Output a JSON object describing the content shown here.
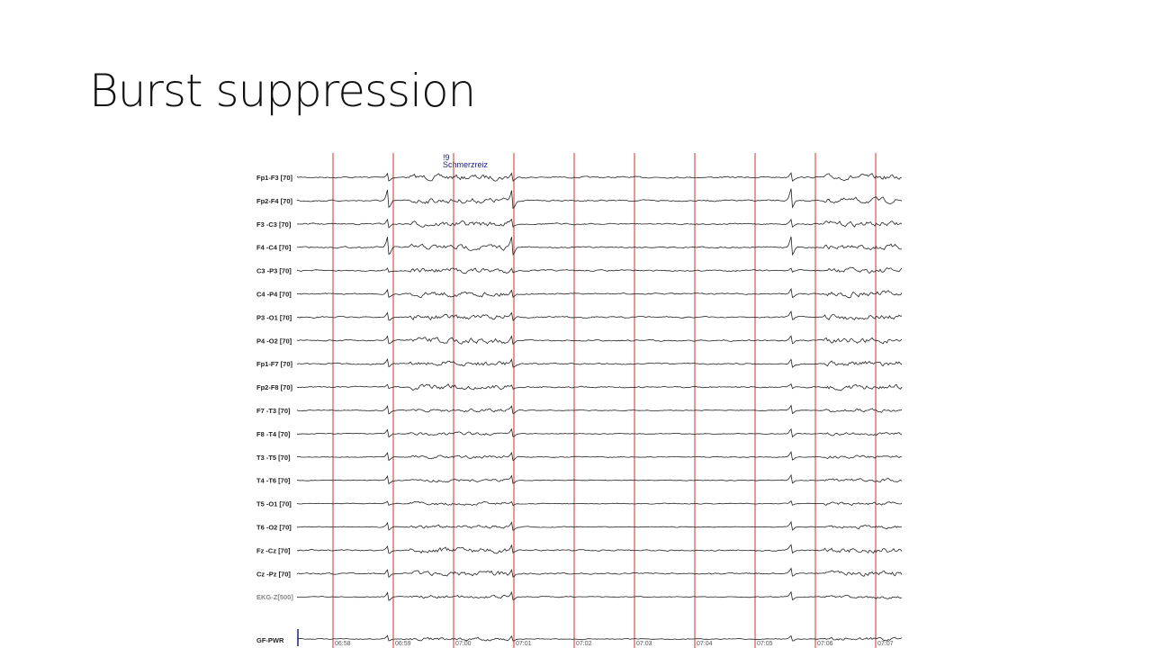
{
  "title": "Burst suppression",
  "eeg": {
    "annotation": {
      "marker": "!9",
      "text": "Schmerzreiz"
    },
    "channels": [
      "Fp1-F3 [70]",
      "Fp2-F4 [70]",
      "F3 -C3 [70]",
      "F4 -C4 [70]",
      "C3 -P3 [70]",
      "C4 -P4 [70]",
      "P3 -O1 [70]",
      "P4 -O2 [70]",
      "Fp1-F7 [70]",
      "Fp2-F8 [70]",
      "F7 -T3 [70]",
      "F8 -T4 [70]",
      "T3 -T5 [70]",
      "T4 -T6 [70]",
      "T5 -O1 [70]",
      "T6 -O2 [70]",
      "Fz -Cz [70]",
      "Cz -Pz [70]",
      "EKG-Z[500]",
      "GF-PWR"
    ],
    "times": [
      "06:58",
      "06:59",
      "07:00",
      "07:01",
      "07:02",
      "07:03",
      "07:04",
      "07:05",
      "07:06",
      "07:07"
    ]
  }
}
